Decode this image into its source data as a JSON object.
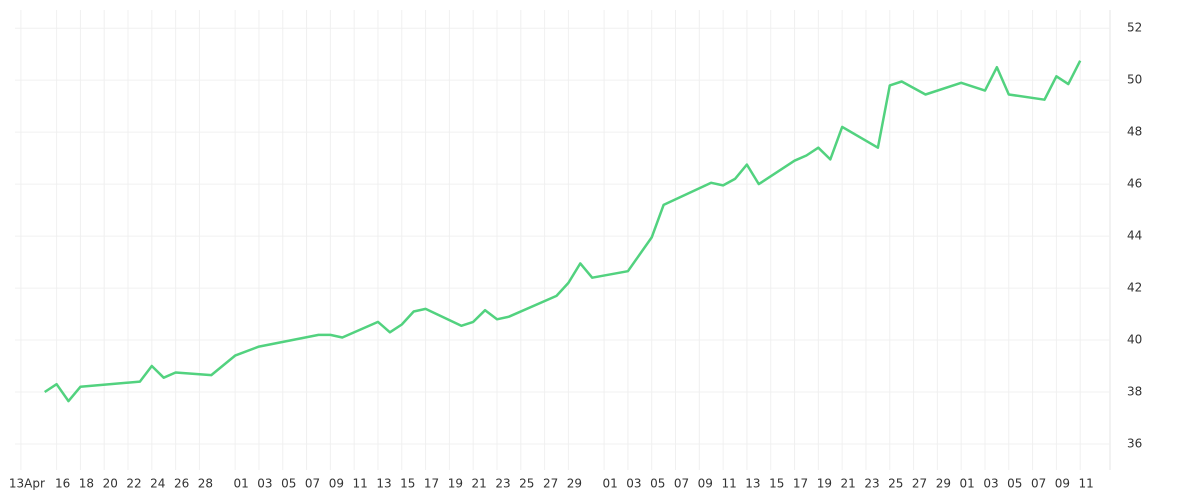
{
  "chart_data": {
    "type": "line",
    "x": [
      "04-15",
      "04-16",
      "04-17",
      "04-18",
      "04-23",
      "04-24",
      "04-25",
      "04-26",
      "04-29",
      "05-01",
      "05-03",
      "05-08",
      "05-09",
      "05-10",
      "05-13",
      "05-14",
      "05-15",
      "05-16",
      "05-17",
      "05-20",
      "05-21",
      "05-22",
      "05-23",
      "05-24",
      "05-28",
      "05-29",
      "05-30",
      "05-31",
      "06-03",
      "06-05",
      "06-06",
      "06-10",
      "06-11",
      "06-12",
      "06-13",
      "06-14",
      "06-17",
      "06-18",
      "06-19",
      "06-20",
      "06-21",
      "06-24",
      "06-25",
      "06-26",
      "06-27",
      "06-28",
      "07-01",
      "07-02",
      "07-03",
      "07-04",
      "07-05",
      "07-08",
      "07-09",
      "07-10",
      "07-11"
    ],
    "series": [
      {
        "color": "#52d27f",
        "values": [
          38.0,
          38.3,
          37.65,
          38.2,
          38.4,
          39.0,
          38.55,
          38.75,
          38.65,
          39.4,
          39.75,
          40.2,
          40.2,
          40.1,
          40.7,
          40.3,
          40.6,
          41.1,
          41.2,
          40.55,
          40.7,
          41.15,
          40.8,
          40.9,
          41.7,
          42.2,
          42.95,
          42.4,
          42.65,
          43.95,
          45.2,
          46.05,
          45.95,
          46.2,
          46.75,
          46.0,
          46.9,
          47.1,
          47.4,
          46.95,
          48.2,
          47.4,
          49.8,
          49.95,
          49.7,
          49.45,
          49.9,
          49.75,
          49.6,
          50.5,
          49.45,
          49.25,
          50.15,
          49.85,
          50.75
        ]
      }
    ],
    "xlim": [
      "04-12",
      "07-13"
    ],
    "xticks": [
      {
        "value": "04-13",
        "label": "13Apr"
      },
      {
        "value": "04-16",
        "label": "16"
      },
      {
        "value": "04-18",
        "label": "18"
      },
      {
        "value": "04-20",
        "label": "20"
      },
      {
        "value": "04-22",
        "label": "22"
      },
      {
        "value": "04-24",
        "label": "24"
      },
      {
        "value": "04-26",
        "label": "26"
      },
      {
        "value": "04-28",
        "label": "28"
      },
      {
        "value": "05-01",
        "label": "01"
      },
      {
        "value": "05-03",
        "label": "03"
      },
      {
        "value": "05-05",
        "label": "05"
      },
      {
        "value": "05-07",
        "label": "07"
      },
      {
        "value": "05-09",
        "label": "09"
      },
      {
        "value": "05-11",
        "label": "11"
      },
      {
        "value": "05-13",
        "label": "13"
      },
      {
        "value": "05-15",
        "label": "15"
      },
      {
        "value": "05-17",
        "label": "17"
      },
      {
        "value": "05-19",
        "label": "19"
      },
      {
        "value": "05-21",
        "label": "21"
      },
      {
        "value": "05-23",
        "label": "23"
      },
      {
        "value": "05-25",
        "label": "25"
      },
      {
        "value": "05-27",
        "label": "27"
      },
      {
        "value": "05-29",
        "label": "29"
      },
      {
        "value": "06-01",
        "label": "01"
      },
      {
        "value": "06-03",
        "label": "03"
      },
      {
        "value": "06-05",
        "label": "05"
      },
      {
        "value": "06-07",
        "label": "07"
      },
      {
        "value": "06-09",
        "label": "09"
      },
      {
        "value": "06-11",
        "label": "11"
      },
      {
        "value": "06-13",
        "label": "13"
      },
      {
        "value": "06-15",
        "label": "15"
      },
      {
        "value": "06-17",
        "label": "17"
      },
      {
        "value": "06-19",
        "label": "19"
      },
      {
        "value": "06-21",
        "label": "21"
      },
      {
        "value": "06-23",
        "label": "23"
      },
      {
        "value": "06-25",
        "label": "25"
      },
      {
        "value": "06-27",
        "label": "27"
      },
      {
        "value": "06-29",
        "label": "29"
      },
      {
        "value": "07-01",
        "label": "01"
      },
      {
        "value": "07-03",
        "label": "03"
      },
      {
        "value": "07-05",
        "label": "05"
      },
      {
        "value": "07-07",
        "label": "07"
      },
      {
        "value": "07-09",
        "label": "09"
      },
      {
        "value": "07-11",
        "label": "11"
      }
    ],
    "ylim": [
      35,
      52.7
    ],
    "yticks": [
      36,
      38,
      40,
      42,
      44,
      46,
      48,
      50,
      52
    ],
    "grid": true
  }
}
